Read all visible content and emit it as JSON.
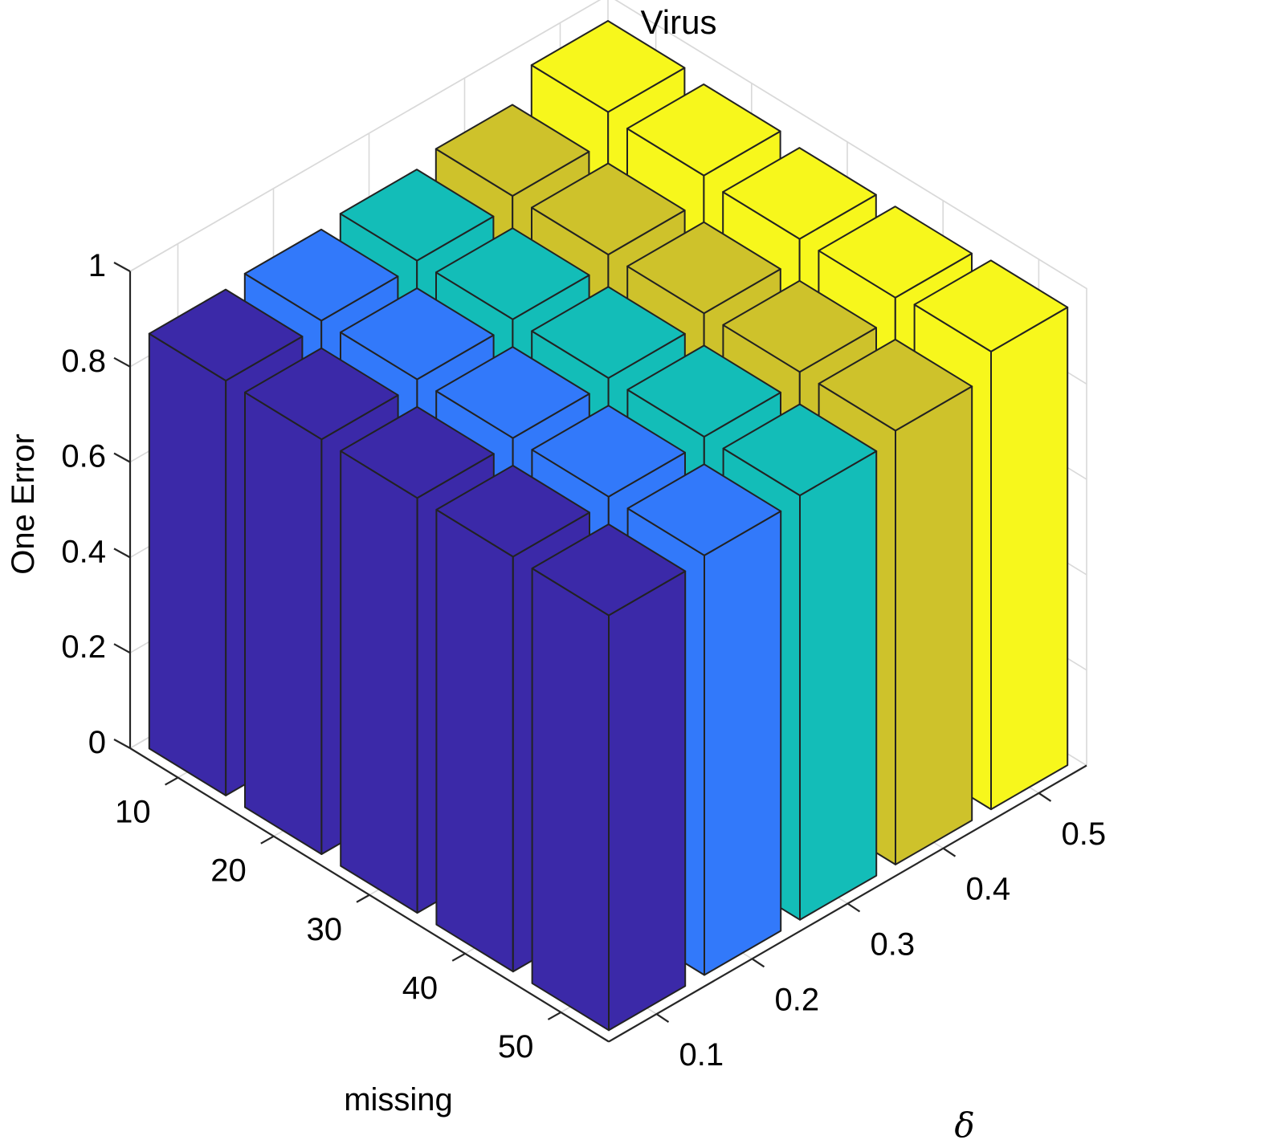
{
  "chart_data": {
    "type": "bar3d",
    "title": "Virus",
    "zlabel": "One Error",
    "xlabel": "missing",
    "ylabel": "δ",
    "x_ticks": [
      "10",
      "20",
      "30",
      "40",
      "50"
    ],
    "y_ticks": [
      "0.1",
      "0.2",
      "0.3",
      "0.4",
      "0.5"
    ],
    "z_ticks": [
      "0",
      "0.2",
      "0.4",
      "0.6",
      "0.8",
      "1"
    ],
    "zlim": [
      0,
      1
    ],
    "grid": true,
    "series": [
      {
        "delta": "0.1",
        "color": "#3b29a8",
        "values": [
          0.87,
          0.87,
          0.87,
          0.87,
          0.87
        ]
      },
      {
        "delta": "0.2",
        "color": "#3279fa",
        "values": [
          0.88,
          0.88,
          0.88,
          0.88,
          0.88
        ]
      },
      {
        "delta": "0.3",
        "color": "#13bdb8",
        "values": [
          0.89,
          0.89,
          0.89,
          0.89,
          0.89
        ]
      },
      {
        "delta": "0.4",
        "color": "#cec22b",
        "values": [
          0.91,
          0.91,
          0.91,
          0.91,
          0.91
        ]
      },
      {
        "delta": "0.5",
        "color": "#f7f71c",
        "values": [
          0.97,
          0.96,
          0.95,
          0.95,
          0.96
        ]
      }
    ]
  }
}
